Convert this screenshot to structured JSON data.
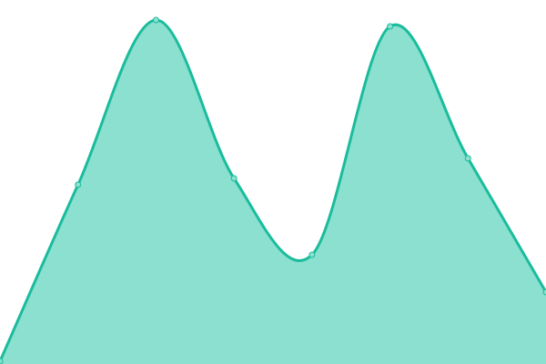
{
  "chart_data": {
    "type": "area",
    "smooth": true,
    "x": [
      0,
      1,
      2,
      3,
      4,
      5,
      6,
      7
    ],
    "values": [
      3,
      197,
      378,
      204,
      120,
      371,
      226,
      79
    ],
    "ylim": [
      0,
      400
    ],
    "grid": false,
    "axes_visible": false,
    "colors": {
      "line": "#1abc9c",
      "fill": "#8be0cf",
      "point_fill": "#8be0cf"
    }
  }
}
